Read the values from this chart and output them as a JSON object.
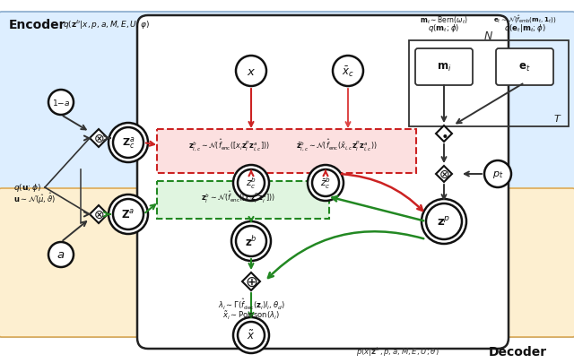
{
  "bg_color": "#ffffff",
  "encoder_bg": "#ddeeff",
  "decoder_bg": "#fdefd0",
  "red_box_bg": "#fce0e0",
  "green_box_bg": "#e0f5e0"
}
